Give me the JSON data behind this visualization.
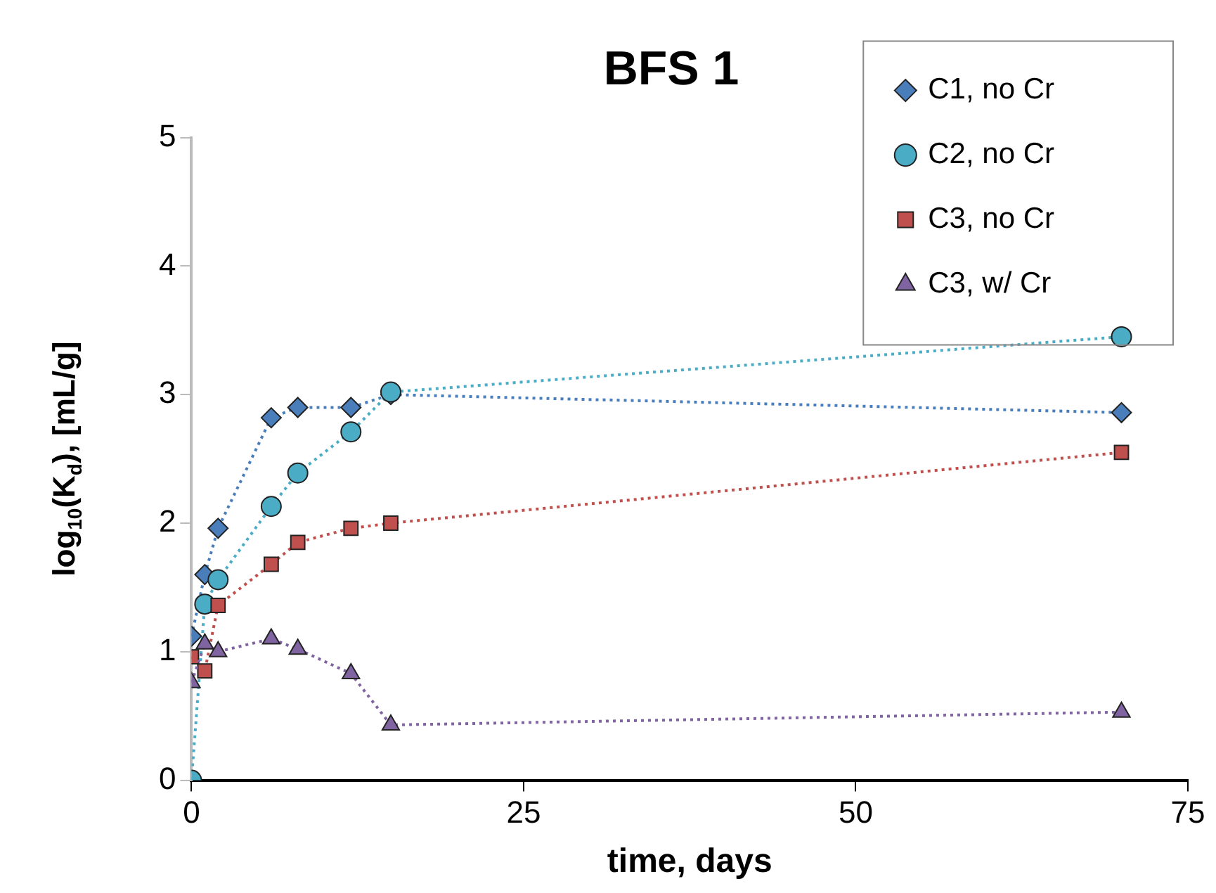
{
  "chart_data": {
    "type": "line",
    "title": "BFS 1",
    "xlabel": "time, days",
    "ylabel": "log$_{10}$(K$_{d}$), [mL/g]",
    "x": [
      0,
      1,
      2,
      6,
      8,
      12,
      15,
      70
    ],
    "series": [
      {
        "name": "C1, no Cr",
        "color": "#4a7ebb",
        "marker": "diamond",
        "values": [
          1.12,
          1.6,
          1.96,
          2.82,
          2.9,
          2.9,
          3.0,
          2.86
        ]
      },
      {
        "name": "C2, no Cr",
        "color": "#4bacc6",
        "marker": "circle",
        "values": [
          0,
          1.37,
          1.56,
          2.13,
          2.39,
          2.71,
          3.02,
          3.45
        ]
      },
      {
        "name": "C3, no Cr",
        "color": "#c0504d",
        "marker": "square",
        "values": [
          0.96,
          0.85,
          1.36,
          1.68,
          1.85,
          1.96,
          2.0,
          2.55
        ]
      },
      {
        "name": "C3, w/ Cr",
        "color": "#8064a2",
        "marker": "triangle",
        "values": [
          0.76,
          1.06,
          1.0,
          1.1,
          1.02,
          0.83,
          0.43,
          0.53
        ]
      }
    ],
    "xlim": [
      0,
      75
    ],
    "xticks": [
      0,
      25,
      50,
      75
    ],
    "ylim": [
      0,
      5
    ],
    "yticks": [
      0,
      1,
      2,
      3,
      4,
      5
    ],
    "grid": false,
    "legend": "top right",
    "line_style": "dotted"
  }
}
